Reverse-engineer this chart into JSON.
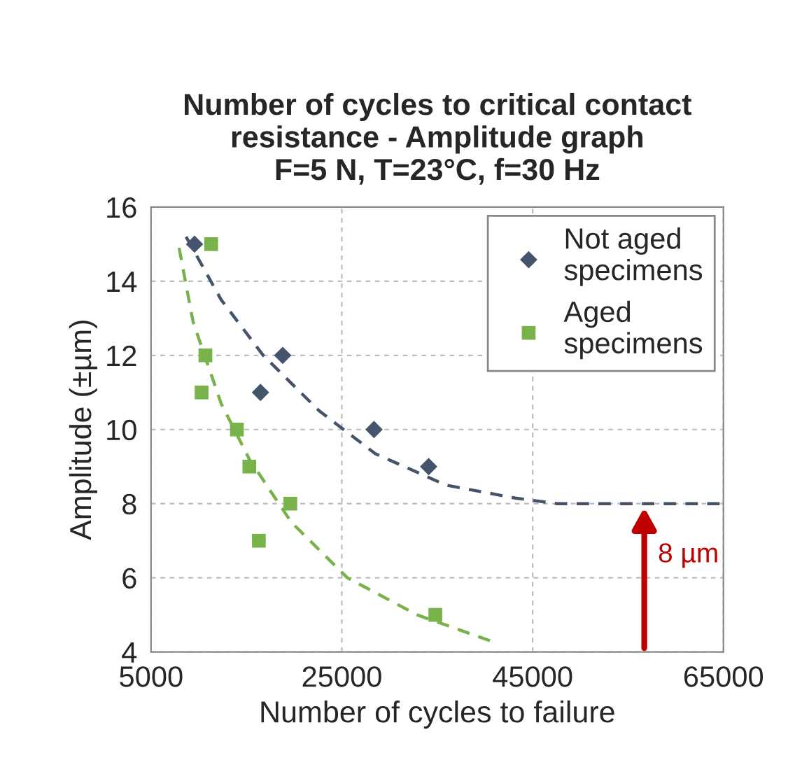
{
  "chart_data": {
    "type": "scatter",
    "title": "Number of cycles to critical contact\nresistance - Amplitude graph\nF=5 N, T=23°C, f=30 Hz",
    "xlabel": "Number of cycles to failure",
    "ylabel": "Amplitude (±µm)",
    "xlim": [
      5000,
      65000
    ],
    "xticks": [
      5000,
      25000,
      45000,
      65000
    ],
    "ylim": [
      4,
      16
    ],
    "yticks": [
      4,
      6,
      8,
      10,
      12,
      14,
      16
    ],
    "grid": true,
    "legend": "top right",
    "series": [
      {
        "name": "Not aged\nspecimens",
        "marker": "diamond",
        "color": "#44546a",
        "x": [
          9560,
          16470,
          18800,
          28370,
          34100
        ],
        "values": [
          15,
          11,
          12,
          10,
          9
        ]
      },
      {
        "name": "Aged\nspecimens",
        "marker": "square",
        "color": "#77b34a",
        "x": [
          11300,
          10700,
          10300,
          14000,
          15300,
          19600,
          16300,
          34800
        ],
        "values": [
          15,
          12,
          11,
          10,
          9,
          8,
          7,
          5
        ]
      },
      {
        "type": "line",
        "line_style": "dashed",
        "color": "#44546a",
        "x": [
          8675,
          12350,
          16760,
          22640,
          28500,
          35900,
          43200,
          47600,
          65000
        ],
        "values": [
          15.2,
          13.5,
          12.0,
          10.5,
          9.35,
          8.5,
          8.15,
          8.0,
          8.0
        ]
      },
      {
        "type": "line",
        "line_style": "dashed",
        "color": "#77b34a",
        "x": [
          7940,
          9410,
          12350,
          15300,
          19700,
          25580,
          32900,
          40570
        ],
        "values": [
          14.9,
          12.9,
          10.7,
          9.2,
          7.5,
          6.0,
          5.0,
          4.3
        ]
      }
    ],
    "annotations": [
      {
        "text": "8 µm",
        "x": 56700,
        "y": 8
      }
    ]
  }
}
